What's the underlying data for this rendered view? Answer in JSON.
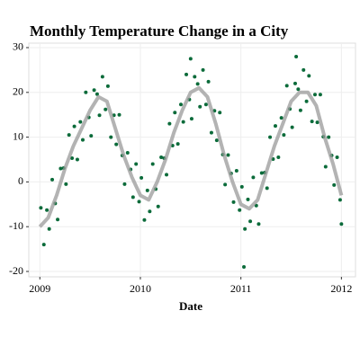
{
  "chart_data": {
    "type": "scatter",
    "title": "Monthly Temperature Change in a City",
    "x_label": "Date",
    "xlim": [
      2008.89,
      2012.14
    ],
    "xticks": [
      2009,
      2010,
      2011,
      2012
    ],
    "ylim": [
      -21.2,
      31
    ],
    "yticks": [
      -20,
      -10,
      0,
      10,
      20,
      30
    ],
    "grid": true,
    "color": "#0b6b3a",
    "x": [
      2009.01,
      2009.04,
      2009.07,
      2009.093,
      2009.123,
      2009.153,
      2009.177,
      2009.207,
      2009.237,
      2009.26,
      2009.29,
      2009.32,
      2009.343,
      2009.373,
      2009.403,
      2009.427,
      2009.457,
      2009.487,
      2009.51,
      2009.54,
      2009.57,
      2009.593,
      2009.623,
      2009.653,
      2009.677,
      2009.707,
      2009.737,
      2009.76,
      2009.79,
      2009.82,
      2009.843,
      2009.873,
      2009.903,
      2009.927,
      2009.957,
      2009.987,
      2010.01,
      2010.04,
      2010.07,
      2010.093,
      2010.123,
      2010.153,
      2010.177,
      2010.207,
      2010.237,
      2010.26,
      2010.29,
      2010.32,
      2010.343,
      2010.373,
      2010.403,
      2010.427,
      2010.457,
      2010.487,
      2010.51,
      2010.54,
      2010.57,
      2010.593,
      2010.623,
      2010.653,
      2010.677,
      2010.707,
      2010.737,
      2010.76,
      2010.79,
      2010.82,
      2010.843,
      2010.873,
      2010.903,
      2010.927,
      2010.957,
      2010.987,
      2011.01,
      2011.04,
      2011.07,
      2011.093,
      2011.123,
      2011.153,
      2011.177,
      2011.207,
      2011.237,
      2011.26,
      2011.29,
      2011.32,
      2011.343,
      2011.373,
      2011.403,
      2011.427,
      2011.457,
      2011.487,
      2011.51,
      2011.54,
      2011.57,
      2011.593,
      2011.623,
      2011.653,
      2011.677,
      2011.707,
      2011.737,
      2011.76,
      2011.79,
      2011.82,
      2011.843,
      2011.873,
      2011.903,
      2011.927,
      2011.957,
      2011.987,
      2012.0,
      2011.03,
      2011.55,
      2010.5
    ],
    "values": [
      -5.8,
      -14,
      -6.3,
      -10.5,
      0.5,
      -4.8,
      -8.4,
      3,
      3.1,
      -0.5,
      10.5,
      5.3,
      12.4,
      5,
      13.4,
      9.4,
      20,
      14.4,
      10.3,
      20.5,
      19.6,
      14.9,
      23.5,
      16.2,
      21.4,
      10,
      14.9,
      8.4,
      15,
      5.9,
      -0.5,
      6.5,
      2.8,
      -3.4,
      4,
      -4.4,
      0.9,
      -8.5,
      -1.9,
      -6.6,
      4,
      -1.6,
      -5.5,
      5.5,
      5.3,
      1.6,
      13,
      8.1,
      15.5,
      8.5,
      17.3,
      13.4,
      24,
      18.4,
      14.1,
      23.5,
      21.9,
      16.8,
      25,
      17.3,
      22.4,
      11,
      15.9,
      9.3,
      15.5,
      6.1,
      -0.6,
      6,
      1.9,
      -4.5,
      2.5,
      -6.3,
      -1.1,
      -10.5,
      -3.9,
      -8.8,
      1,
      -5.3,
      -9.4,
      2,
      2.1,
      -1.4,
      10,
      5.1,
      12.5,
      5.5,
      14.3,
      10.5,
      21.5,
      16.3,
      12.2,
      22,
      20.7,
      16,
      25,
      18,
      23.7,
      13.5,
      19.5,
      13.3,
      19.5,
      10.1,
      3.4,
      10,
      5.9,
      -0.7,
      5.5,
      -4,
      -9.4,
      -19,
      28,
      27.5
    ],
    "trend_line": {
      "color": "#999999",
      "x": [
        2009.0,
        2009.083,
        2009.167,
        2009.25,
        2009.333,
        2009.417,
        2009.5,
        2009.583,
        2009.667,
        2009.75,
        2009.833,
        2009.917,
        2010.0,
        2010.083,
        2010.167,
        2010.25,
        2010.333,
        2010.417,
        2010.5,
        2010.583,
        2010.667,
        2010.75,
        2010.833,
        2010.917,
        2011.0,
        2011.083,
        2011.167,
        2011.25,
        2011.333,
        2011.417,
        2011.5,
        2011.583,
        2011.667,
        2011.75,
        2011.833,
        2011.917,
        2012.0
      ],
      "values": [
        -10,
        -8,
        -3,
        3,
        8,
        12,
        16,
        19,
        18,
        12,
        6,
        1,
        -3,
        -4,
        0,
        5,
        11,
        16,
        20,
        21,
        19,
        13,
        6,
        0,
        -5,
        -6,
        -4,
        2,
        8,
        13,
        18,
        20,
        20,
        17,
        10,
        4,
        -3
      ]
    }
  }
}
